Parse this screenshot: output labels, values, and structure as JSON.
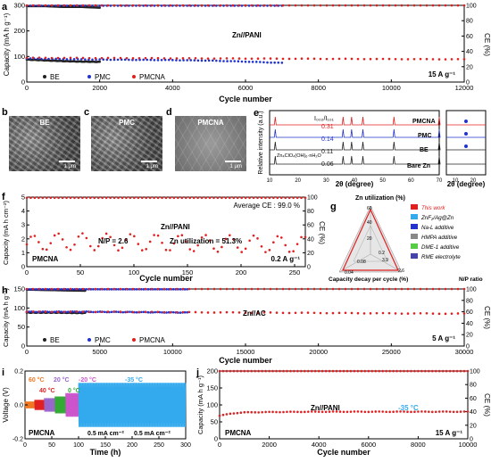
{
  "panels": {
    "a": {
      "label": "a",
      "system": "Zn//PANI",
      "rate": "15 A g⁻¹",
      "ylabel": "Capacity (mA h g⁻¹)",
      "y2label": "CE (%)",
      "xlabel": "Cycle number",
      "legend": [
        {
          "name": "BE",
          "color": "#222222"
        },
        {
          "name": "PMC",
          "color": "#2233cc"
        },
        {
          "name": "PMCNA",
          "color": "#e02020"
        }
      ]
    },
    "b": {
      "label": "b",
      "title": "BE",
      "scale": "1 μm"
    },
    "c": {
      "label": "c",
      "title": "PMC",
      "scale": "1 μm"
    },
    "d": {
      "label": "d",
      "title": "PMCNA",
      "scale": "1 μm"
    },
    "e": {
      "label": "e",
      "ylabel": "Relative intensity (a.u.)",
      "xlabel": "2θ (degree)",
      "xlabel2": "2θ (degree)",
      "ratio_label": "I₀₀₂/I₁₀₁",
      "traces": [
        {
          "name": "PMCNA",
          "ratio": "0.31",
          "color": "#e02020"
        },
        {
          "name": "PMC",
          "ratio": "0.14",
          "color": "#2233cc"
        },
        {
          "name": "BE",
          "ratio": "0.11",
          "color": "#222222"
        },
        {
          "name": "Bare Zn",
          "ratio": "0.06",
          "color": "#222222"
        }
      ],
      "phase": "Zn₄ClO₄(OH)₆·nH₂O"
    },
    "f": {
      "label": "f",
      "system": "Zn//PANI",
      "avg_ce": "Average CE : 99.0 %",
      "np": "N/P = 2.6",
      "zn_util": "Zn utilization = 51.3%",
      "sample": "PMCNA",
      "rate": "0.2 A g⁻¹",
      "ylabel": "Capacity (mA h cm⁻²)",
      "y2label": "CE (%)",
      "xlabel": "Cycle number"
    },
    "g": {
      "label": "g",
      "axis_top": "Zn utilization (%)",
      "axis_left": "Capacity decay per cycle (%)",
      "axis_right": "N/P ratio",
      "ticks": [
        "60",
        "40",
        "20",
        "0.2",
        "0.08",
        "0.04",
        "3.9",
        "2.6"
      ],
      "legend": [
        {
          "name": "This work",
          "color": "#e02020"
        },
        {
          "name": "ZnF₂/Ag@Zn",
          "color": "#33aaee"
        },
        {
          "name": "Na-L additive",
          "color": "#2233cc"
        },
        {
          "name": "HMPA additive",
          "color": "#888888"
        },
        {
          "name": "DME-1 additive",
          "color": "#55cc44"
        },
        {
          "name": "RME electrolyte",
          "color": "#4444aa"
        }
      ]
    },
    "h": {
      "label": "h",
      "system": "Zn//AC",
      "rate": "5 A g⁻¹",
      "ylabel": "Capacity (mA h g⁻¹)",
      "y2label": "CE (%)",
      "xlabel": "Cycle number",
      "legend": [
        {
          "name": "BE",
          "color": "#222222"
        },
        {
          "name": "PMC",
          "color": "#2233cc"
        },
        {
          "name": "PMCNA",
          "color": "#e02020"
        }
      ]
    },
    "i": {
      "label": "i",
      "ylabel": "Voltage (V)",
      "xlabel": "Time (h)",
      "sample": "PMCNA",
      "temps": [
        {
          "t": "60 °C",
          "color": "#ee7722"
        },
        {
          "t": "40 °C",
          "color": "#e02020"
        },
        {
          "t": "20 °C",
          "color": "#9966cc"
        },
        {
          "t": "0 °C",
          "color": "#33aa33"
        },
        {
          "t": "-20 °C",
          "color": "#cc55cc"
        },
        {
          "t": "-35 °C",
          "color": "#33aaee"
        }
      ],
      "cd1": "0.5 mA cm⁻²",
      "cd2": "0.5 mA cm⁻²"
    },
    "j": {
      "label": "j",
      "system": "Zn//PANI",
      "temp": "-35 °C",
      "rate": "15 A g⁻¹",
      "sample": "PMCNA",
      "ylabel": "Capacity (mA h g⁻¹)",
      "y2label": "CE (%)",
      "xlabel": "Cycle number"
    }
  },
  "chart_data": [
    {
      "type": "line",
      "panel": "a",
      "xlim": [
        0,
        12000
      ],
      "ylim": [
        0,
        300
      ],
      "y2lim": [
        0,
        100
      ],
      "xticks": [
        0,
        2000,
        4000,
        6000,
        8000,
        10000,
        12000
      ],
      "yticks": [
        0,
        100,
        200,
        300
      ],
      "y2ticks": [
        0,
        20,
        40,
        60,
        80,
        100
      ],
      "series": [
        {
          "name": "BE",
          "x": [
            0,
            500,
            1000,
            1500,
            2000
          ],
          "capacity": [
            88,
            85,
            82,
            80,
            79
          ],
          "ce": [
            99,
            99,
            98,
            98,
            97
          ]
        },
        {
          "name": "PMC",
          "x": [
            0,
            1000,
            2000,
            3000,
            4000,
            5000,
            6000,
            7000
          ],
          "capacity": [
            92,
            90,
            88,
            87,
            86,
            84,
            80,
            75
          ],
          "ce": [
            99.5,
            99.5,
            99.5,
            99.5,
            99.5,
            99.5,
            99.5,
            99.5
          ]
        },
        {
          "name": "PMCNA",
          "x": [
            0,
            2000,
            4000,
            6000,
            8000,
            10000,
            12000
          ],
          "capacity": [
            95,
            94,
            93,
            92,
            91,
            90,
            89
          ],
          "ce": [
            99.9,
            99.9,
            99.9,
            99.9,
            99.9,
            99.9,
            99.9
          ]
        }
      ]
    },
    {
      "type": "line",
      "panel": "e",
      "x_range": [
        10,
        70
      ],
      "peaks_2theta": [
        12,
        36,
        39,
        43,
        54,
        70
      ]
    },
    {
      "type": "line",
      "panel": "f",
      "xlim": [
        0,
        260
      ],
      "ylim": [
        0,
        5
      ],
      "y2lim": [
        0,
        100
      ],
      "xticks": [
        0,
        50,
        100,
        150,
        200,
        250
      ],
      "yticks": [
        0,
        1,
        2,
        3,
        4,
        5
      ],
      "y2ticks": [
        0,
        20,
        40,
        60,
        80,
        100
      ],
      "series": [
        {
          "name": "PMCNA",
          "x": [
            0,
            20,
            50,
            100,
            150,
            200,
            260
          ],
          "capacity": [
            1.6,
            1.8,
            1.8,
            1.75,
            1.7,
            1.65,
            1.6
          ],
          "ce": [
            99,
            99,
            99,
            99,
            99,
            99,
            99
          ]
        }
      ]
    },
    {
      "type": "line",
      "panel": "h",
      "xlim": [
        0,
        30000
      ],
      "ylim": [
        0,
        150
      ],
      "y2lim": [
        0,
        100
      ],
      "xticks": [
        0,
        5000,
        10000,
        15000,
        20000,
        25000,
        30000
      ],
      "yticks": [
        0,
        50,
        100,
        150
      ],
      "y2ticks": [
        0,
        20,
        40,
        60,
        80,
        100
      ],
      "series": [
        {
          "name": "BE",
          "x": [
            0,
            2000,
            4000
          ],
          "capacity": [
            88,
            88,
            87
          ],
          "ce": [
            99,
            98,
            97
          ]
        },
        {
          "name": "PMC",
          "x": [
            0,
            4000,
            8000,
            11000
          ],
          "capacity": [
            90,
            90,
            89,
            88
          ],
          "ce": [
            99.5,
            99.5,
            99.5,
            99.5
          ]
        },
        {
          "name": "PMCNA",
          "x": [
            0,
            5000,
            10000,
            15000,
            20000,
            25000,
            30000
          ],
          "capacity": [
            90,
            90,
            89,
            88,
            87,
            86,
            85
          ],
          "ce": [
            99.9,
            99.9,
            99.9,
            99.9,
            99.9,
            99.9,
            99.9
          ]
        }
      ]
    },
    {
      "type": "line",
      "panel": "i",
      "xlim": [
        0,
        300
      ],
      "ylim": [
        -0.2,
        0.2
      ],
      "xticks": [
        0,
        50,
        100,
        150,
        200,
        250,
        300
      ],
      "yticks": [
        -0.2,
        0.0,
        0.2
      ],
      "series": [
        {
          "name": "PMCNA",
          "segments": [
            {
              "temp": "60 °C",
              "t": [
                0,
                18
              ],
              "amp": 0.02
            },
            {
              "temp": "40 °C",
              "t": [
                18,
                36
              ],
              "amp": 0.03
            },
            {
              "temp": "20 °C",
              "t": [
                36,
                56
              ],
              "amp": 0.04
            },
            {
              "temp": "0 °C",
              "t": [
                56,
                76
              ],
              "amp": 0.05
            },
            {
              "temp": "-20 °C",
              "t": [
                76,
                100
              ],
              "amp": 0.07
            },
            {
              "temp": "-35 °C",
              "t": [
                100,
                300
              ],
              "amp": 0.13
            }
          ]
        }
      ]
    },
    {
      "type": "line",
      "panel": "j",
      "xlim": [
        0,
        10000
      ],
      "ylim": [
        0,
        200
      ],
      "y2lim": [
        0,
        100
      ],
      "xticks": [
        0,
        2000,
        4000,
        6000,
        8000,
        10000
      ],
      "yticks": [
        0,
        50,
        100,
        150,
        200
      ],
      "y2ticks": [
        0,
        20,
        40,
        60,
        80,
        100
      ],
      "series": [
        {
          "name": "PMCNA",
          "x": [
            0,
            500,
            1000,
            2000,
            4000,
            6000,
            8000,
            10000
          ],
          "capacity": [
            68,
            75,
            78,
            79,
            80,
            80,
            80,
            80
          ],
          "ce": [
            99.9,
            99.9,
            99.9,
            99.9,
            99.9,
            99.9,
            99.9,
            99.9
          ]
        }
      ]
    }
  ]
}
